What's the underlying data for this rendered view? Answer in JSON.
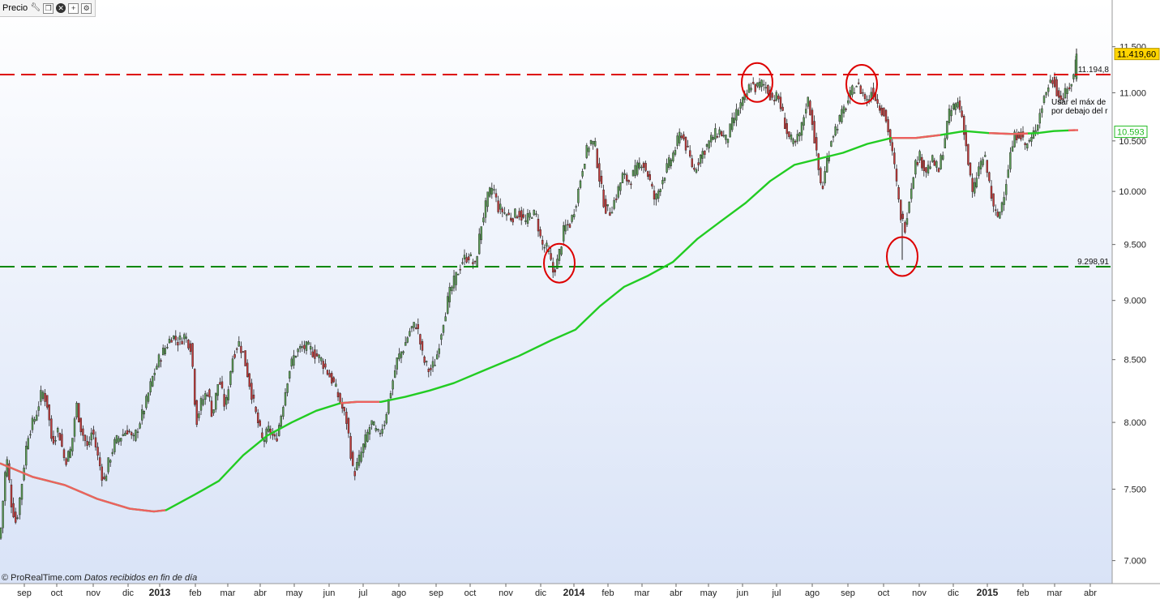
{
  "header": {
    "title": "Precio",
    "icons": [
      "wrench-icon",
      "restore-window-icon",
      "close-icon",
      "add-indicator-icon",
      "settings-icon"
    ]
  },
  "footer": {
    "credit": "© ProRealTime.com",
    "note": "Datos recibidos en fin de día"
  },
  "annotation": {
    "line1": "Usar el máx de",
    "line2": "por debajo del r"
  },
  "colors": {
    "background_top": "#ffffff",
    "background_bottom": "#d9e3f7",
    "up_candle": "#5a9a55",
    "down_candle": "#c03a3a",
    "resistance": "#dd0000",
    "support": "#008800",
    "ma_rising": "#22cc22",
    "ma_falling": "#ee6060",
    "last_price_tag": "#ffd400",
    "ma_tag": "#22bb22",
    "circle": "#dd0000"
  },
  "chart_data": {
    "type": "candlestick",
    "instrument_label": "Precio",
    "y_axis": {
      "min": 6900,
      "max": 11900,
      "ticks": [
        7000,
        7500,
        8000,
        8500,
        9000,
        9500,
        10000,
        10500,
        11000,
        11500
      ],
      "tick_labels": [
        "7.000",
        "7.500",
        "8.000",
        "8.500",
        "9.000",
        "9.500",
        "10.000",
        "10.500",
        "11.000",
        "11.500"
      ],
      "scale": "log"
    },
    "x_axis": {
      "labels": [
        "sep",
        "oct",
        "nov",
        "dic",
        "2013",
        "feb",
        "mar",
        "abr",
        "may",
        "jun",
        "jul",
        "ago",
        "sep",
        "oct",
        "nov",
        "dic",
        "2014",
        "feb",
        "mar",
        "abr",
        "may",
        "jun",
        "jul",
        "ago",
        "sep",
        "oct",
        "nov",
        "dic",
        "2015",
        "feb",
        "mar",
        "abr"
      ],
      "bold_labels": [
        "2013",
        "2014",
        "2015"
      ]
    },
    "levels": [
      {
        "name": "resistance",
        "value": 11194.8,
        "label": "11.194,8"
      },
      {
        "name": "support",
        "value": 9298.91,
        "label": "9.298,91"
      }
    ],
    "price_tags": [
      {
        "name": "last",
        "value": 11419.6,
        "label": "11.419,60"
      },
      {
        "name": "moving-average",
        "value": 10593,
        "label": "10.593"
      }
    ],
    "price_path": [
      [
        0,
        7150
      ],
      [
        8,
        7750
      ],
      [
        14,
        7400
      ],
      [
        20,
        7250
      ],
      [
        26,
        7500
      ],
      [
        34,
        7900
      ],
      [
        44,
        8050
      ],
      [
        52,
        8250
      ],
      [
        58,
        8150
      ],
      [
        64,
        7850
      ],
      [
        72,
        7950
      ],
      [
        80,
        7700
      ],
      [
        88,
        7800
      ],
      [
        94,
        8150
      ],
      [
        100,
        7950
      ],
      [
        108,
        7800
      ],
      [
        114,
        7950
      ],
      [
        120,
        7750
      ],
      [
        128,
        7550
      ],
      [
        134,
        7700
      ],
      [
        142,
        7850
      ],
      [
        150,
        7900
      ],
      [
        158,
        7950
      ],
      [
        164,
        7850
      ],
      [
        172,
        8000
      ],
      [
        180,
        8150
      ],
      [
        188,
        8350
      ],
      [
        196,
        8500
      ],
      [
        204,
        8600
      ],
      [
        212,
        8700
      ],
      [
        220,
        8650
      ],
      [
        228,
        8700
      ],
      [
        236,
        8600
      ],
      [
        242,
        8000
      ],
      [
        248,
        8150
      ],
      [
        256,
        8250
      ],
      [
        262,
        8050
      ],
      [
        270,
        8350
      ],
      [
        278,
        8100
      ],
      [
        286,
        8500
      ],
      [
        294,
        8650
      ],
      [
        300,
        8550
      ],
      [
        308,
        8300
      ],
      [
        316,
        8050
      ],
      [
        324,
        7850
      ],
      [
        332,
        7950
      ],
      [
        340,
        7850
      ],
      [
        348,
        8100
      ],
      [
        356,
        8400
      ],
      [
        364,
        8550
      ],
      [
        372,
        8600
      ],
      [
        380,
        8600
      ],
      [
        388,
        8550
      ],
      [
        396,
        8500
      ],
      [
        404,
        8400
      ],
      [
        412,
        8300
      ],
      [
        420,
        8150
      ],
      [
        428,
        8000
      ],
      [
        436,
        7600
      ],
      [
        442,
        7700
      ],
      [
        450,
        7850
      ],
      [
        458,
        8000
      ],
      [
        466,
        7900
      ],
      [
        474,
        8000
      ],
      [
        482,
        8250
      ],
      [
        490,
        8500
      ],
      [
        498,
        8600
      ],
      [
        506,
        8750
      ],
      [
        514,
        8800
      ],
      [
        522,
        8500
      ],
      [
        530,
        8400
      ],
      [
        538,
        8500
      ],
      [
        546,
        8800
      ],
      [
        554,
        9050
      ],
      [
        562,
        9200
      ],
      [
        570,
        9350
      ],
      [
        578,
        9400
      ],
      [
        586,
        9300
      ],
      [
        594,
        9700
      ],
      [
        602,
        9950
      ],
      [
        608,
        10050
      ],
      [
        614,
        9850
      ],
      [
        622,
        9800
      ],
      [
        630,
        9750
      ],
      [
        640,
        9800
      ],
      [
        648,
        9700
      ],
      [
        656,
        9800
      ],
      [
        662,
        9750
      ],
      [
        668,
        9500
      ],
      [
        676,
        9450
      ],
      [
        682,
        9250
      ],
      [
        688,
        9350
      ],
      [
        696,
        9650
      ],
      [
        704,
        9700
      ],
      [
        712,
        9950
      ],
      [
        720,
        10300
      ],
      [
        728,
        10500
      ],
      [
        734,
        10450
      ],
      [
        740,
        10100
      ],
      [
        746,
        9850
      ],
      [
        752,
        9800
      ],
      [
        760,
        9950
      ],
      [
        768,
        10150
      ],
      [
        776,
        10100
      ],
      [
        784,
        10200
      ],
      [
        792,
        10300
      ],
      [
        800,
        10150
      ],
      [
        808,
        9900
      ],
      [
        816,
        10100
      ],
      [
        824,
        10250
      ],
      [
        832,
        10400
      ],
      [
        840,
        10600
      ],
      [
        848,
        10400
      ],
      [
        856,
        10200
      ],
      [
        864,
        10350
      ],
      [
        872,
        10450
      ],
      [
        880,
        10550
      ],
      [
        888,
        10600
      ],
      [
        896,
        10500
      ],
      [
        904,
        10700
      ],
      [
        912,
        10850
      ],
      [
        920,
        10950
      ],
      [
        926,
        11100
      ],
      [
        932,
        11050
      ],
      [
        940,
        11100
      ],
      [
        946,
        11050
      ],
      [
        952,
        10950
      ],
      [
        960,
        10950
      ],
      [
        966,
        10750
      ],
      [
        972,
        10550
      ],
      [
        980,
        10450
      ],
      [
        988,
        10600
      ],
      [
        996,
        10950
      ],
      [
        1002,
        10700
      ],
      [
        1008,
        10300
      ],
      [
        1014,
        10000
      ],
      [
        1020,
        10300
      ],
      [
        1026,
        10550
      ],
      [
        1032,
        10650
      ],
      [
        1040,
        10800
      ],
      [
        1048,
        10950
      ],
      [
        1056,
        11100
      ],
      [
        1064,
        11000
      ],
      [
        1070,
        10900
      ],
      [
        1076,
        11050
      ],
      [
        1082,
        10900
      ],
      [
        1090,
        10800
      ],
      [
        1096,
        10600
      ],
      [
        1104,
        10200
      ],
      [
        1110,
        9800
      ],
      [
        1116,
        9650
      ],
      [
        1122,
        9950
      ],
      [
        1128,
        10250
      ],
      [
        1134,
        10350
      ],
      [
        1142,
        10200
      ],
      [
        1150,
        10300
      ],
      [
        1158,
        10200
      ],
      [
        1164,
        10450
      ],
      [
        1170,
        10750
      ],
      [
        1176,
        10850
      ],
      [
        1182,
        10900
      ],
      [
        1188,
        10700
      ],
      [
        1194,
        10300
      ],
      [
        1200,
        9950
      ],
      [
        1206,
        10200
      ],
      [
        1214,
        10350
      ],
      [
        1220,
        10100
      ],
      [
        1226,
        9800
      ],
      [
        1232,
        9750
      ],
      [
        1240,
        10050
      ],
      [
        1246,
        10350
      ],
      [
        1252,
        10550
      ],
      [
        1258,
        10600
      ],
      [
        1264,
        10450
      ],
      [
        1272,
        10500
      ],
      [
        1280,
        10700
      ],
      [
        1288,
        10950
      ],
      [
        1294,
        11100
      ],
      [
        1300,
        11150
      ],
      [
        1306,
        10950
      ],
      [
        1312,
        10950
      ],
      [
        1318,
        11050
      ],
      [
        1324,
        11150
      ],
      [
        1328,
        11420
      ]
    ],
    "moving_average": [
      [
        0,
        7690
      ],
      [
        40,
        7590
      ],
      [
        80,
        7530
      ],
      [
        120,
        7430
      ],
      [
        160,
        7360
      ],
      [
        190,
        7340
      ],
      [
        205,
        7350
      ],
      [
        240,
        7460
      ],
      [
        270,
        7560
      ],
      [
        300,
        7750
      ],
      [
        330,
        7900
      ],
      [
        360,
        8000
      ],
      [
        390,
        8090
      ],
      [
        420,
        8150
      ],
      [
        440,
        8160
      ],
      [
        470,
        8160
      ],
      [
        500,
        8200
      ],
      [
        530,
        8250
      ],
      [
        560,
        8310
      ],
      [
        600,
        8420
      ],
      [
        640,
        8530
      ],
      [
        680,
        8660
      ],
      [
        710,
        8750
      ],
      [
        740,
        8950
      ],
      [
        770,
        9120
      ],
      [
        800,
        9220
      ],
      [
        830,
        9340
      ],
      [
        860,
        9550
      ],
      [
        890,
        9720
      ],
      [
        920,
        9890
      ],
      [
        950,
        10100
      ],
      [
        980,
        10260
      ],
      [
        1010,
        10320
      ],
      [
        1040,
        10380
      ],
      [
        1070,
        10470
      ],
      [
        1100,
        10530
      ],
      [
        1130,
        10530
      ],
      [
        1160,
        10560
      ],
      [
        1190,
        10600
      ],
      [
        1220,
        10580
      ],
      [
        1250,
        10570
      ],
      [
        1280,
        10580
      ],
      [
        1300,
        10600
      ],
      [
        1326,
        10610
      ]
    ],
    "falling_ma_segments": [
      [
        0,
        205
      ],
      [
        420,
        470
      ],
      [
        1100,
        1160
      ],
      [
        1220,
        1270
      ],
      [
        1318,
        1330
      ]
    ],
    "circled_points": [
      {
        "label": "top-june-2014",
        "x": 934,
        "value": 11110
      },
      {
        "label": "top-sep-2014",
        "x": 1063,
        "value": 11090
      },
      {
        "label": "low-dec-2013",
        "x": 690,
        "value": 9330
      },
      {
        "label": "low-oct-2014",
        "x": 1113,
        "value": 9390
      }
    ]
  }
}
